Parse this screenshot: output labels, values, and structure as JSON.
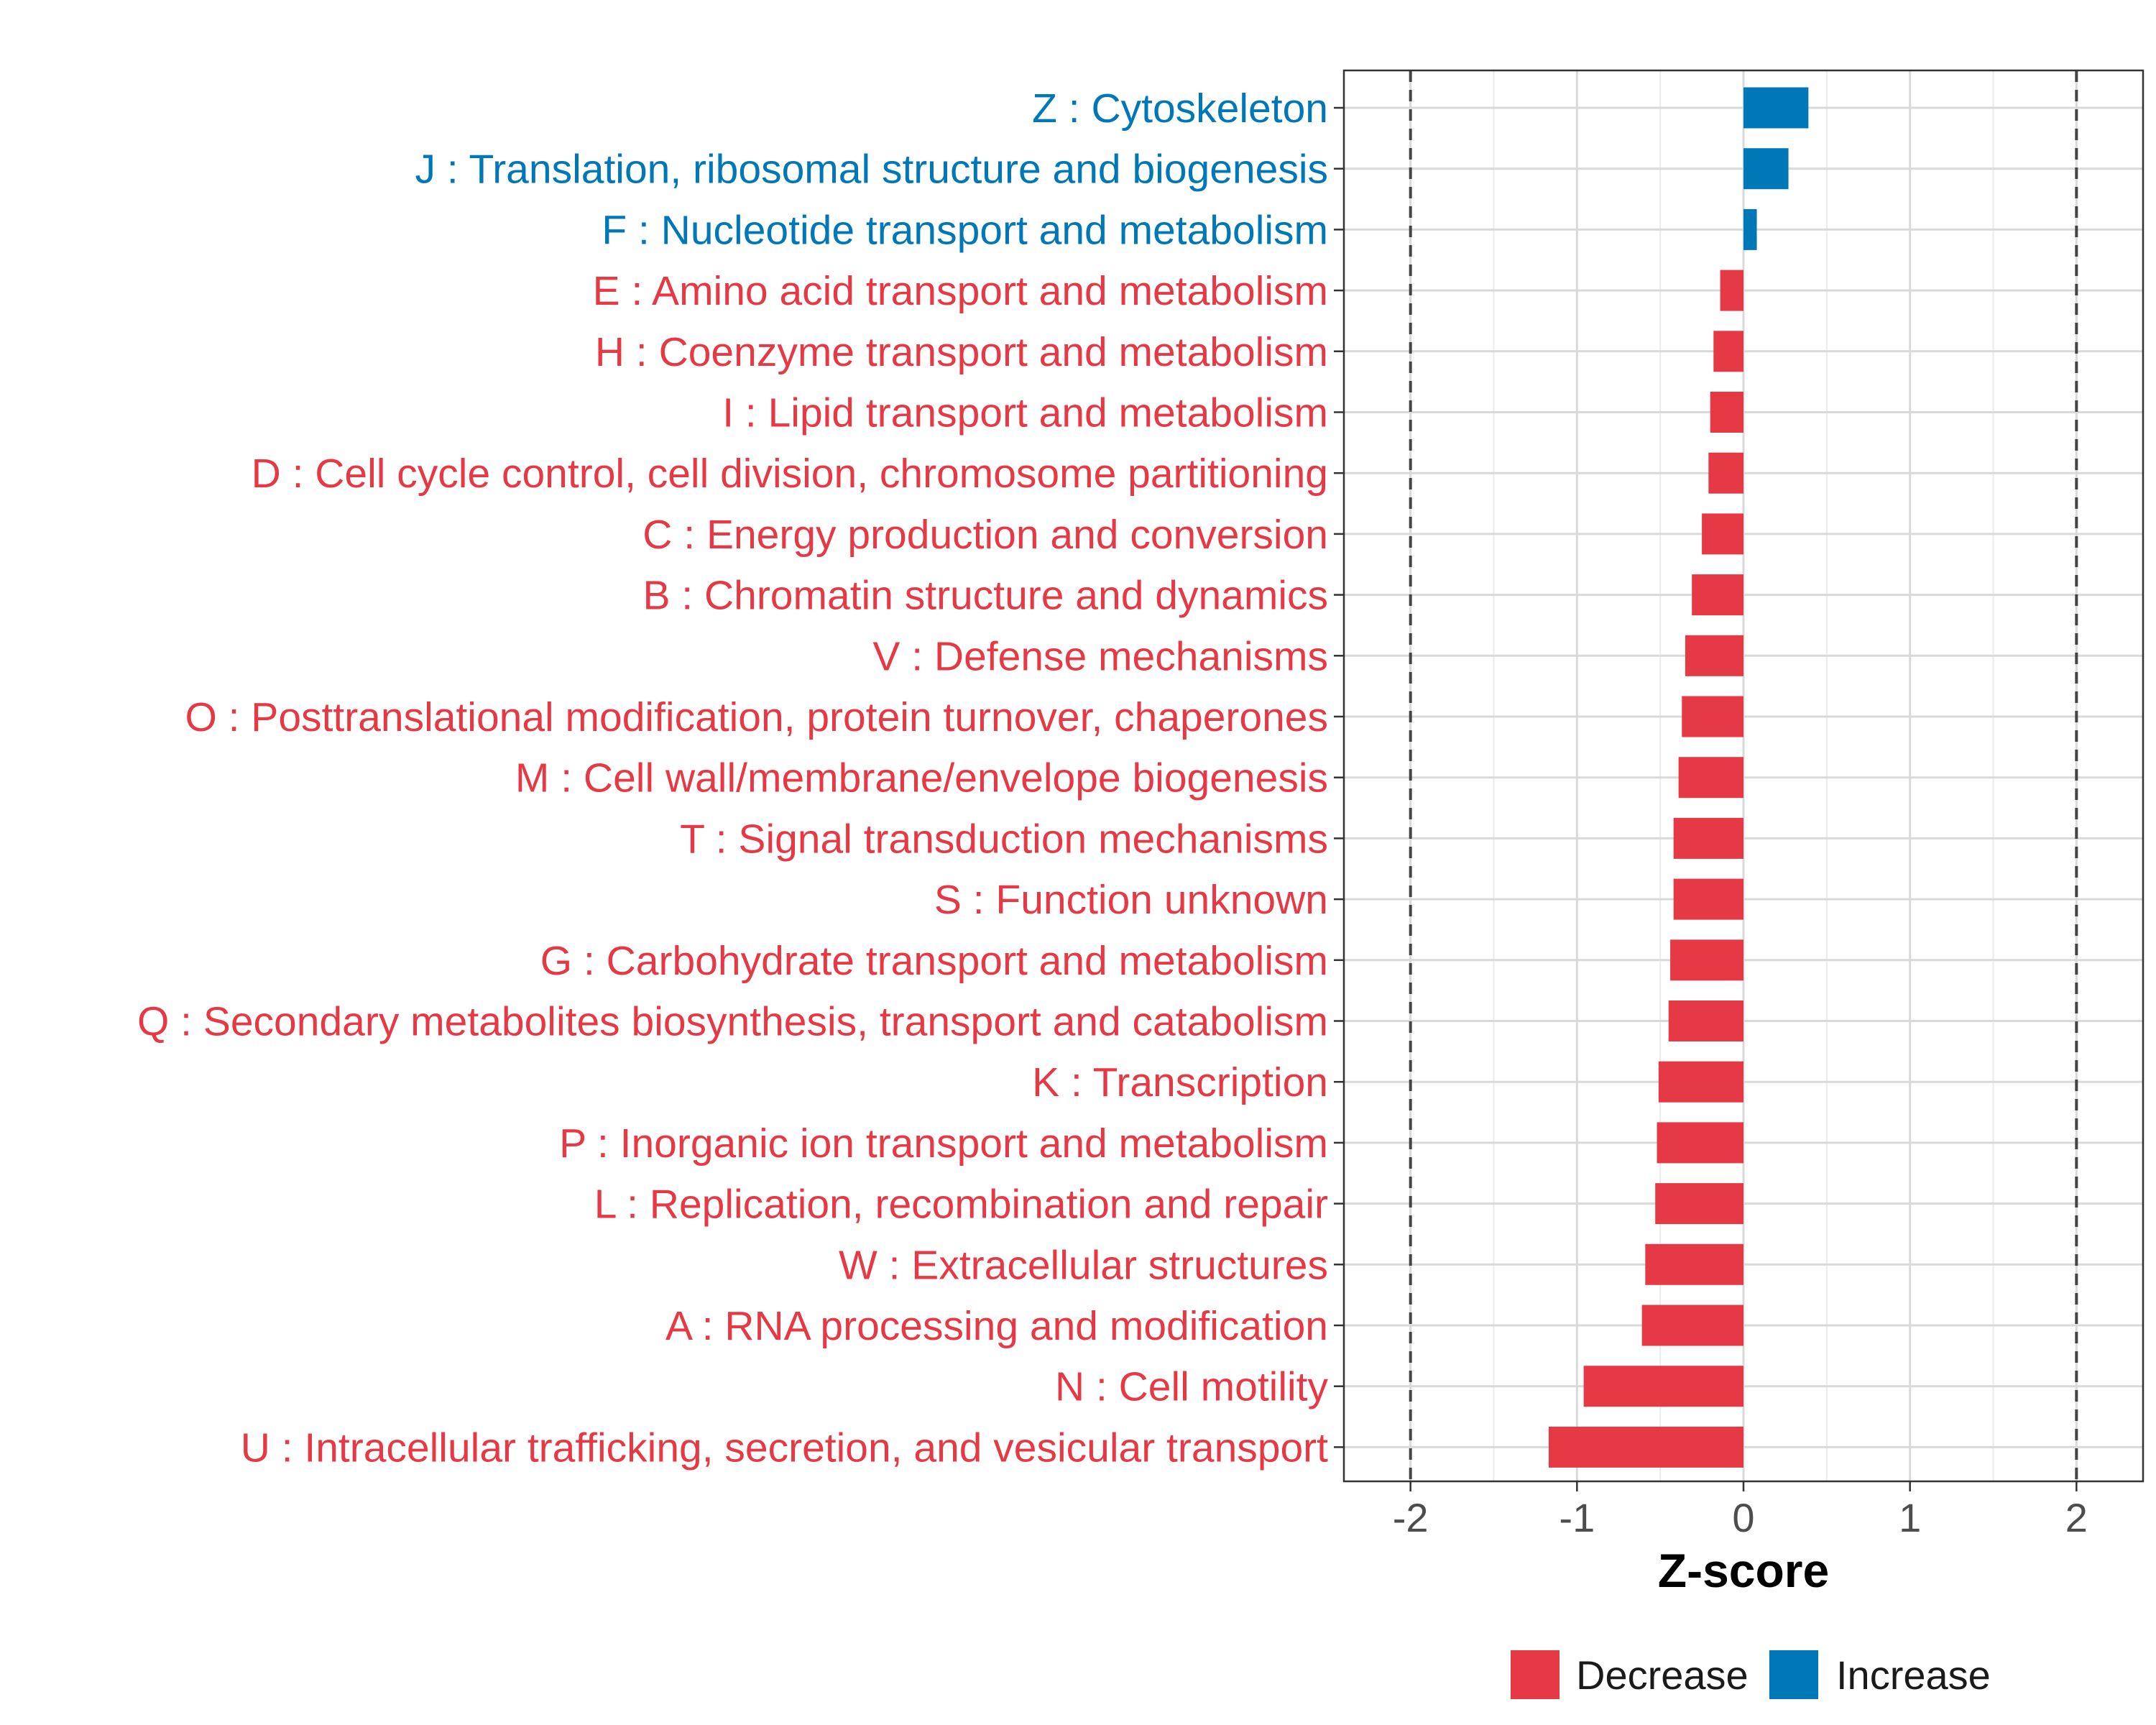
{
  "chart_data": {
    "type": "bar",
    "orientation": "horizontal",
    "title": "",
    "xlabel": "Z-score",
    "ylabel": "",
    "xlim": [
      -2.4,
      2.4
    ],
    "xticks": [
      -2,
      -1,
      0,
      1,
      2
    ],
    "xtick_labels": [
      "-2",
      "-1",
      "0",
      "1",
      "2"
    ],
    "reference_lines": [
      -2,
      2
    ],
    "grid": true,
    "categories": [
      "Z : Cytoskeleton",
      "J : Translation, ribosomal structure and biogenesis",
      "F : Nucleotide transport and metabolism",
      "E : Amino acid transport and metabolism",
      "H : Coenzyme transport and metabolism",
      "I : Lipid transport and metabolism",
      "D : Cell cycle control, cell division, chromosome partitioning",
      "C : Energy production and conversion",
      "B : Chromatin structure and dynamics",
      "V : Defense mechanisms",
      "O : Posttranslational modification, protein turnover, chaperones",
      "M : Cell wall/membrane/envelope biogenesis",
      "T : Signal transduction mechanisms",
      "S : Function unknown",
      "G : Carbohydrate transport and metabolism",
      "Q : Secondary metabolites biosynthesis, transport and catabolism",
      "K : Transcription",
      "P : Inorganic ion transport and metabolism",
      "L : Replication, recombination and repair",
      "W : Extracellular structures",
      "A : RNA processing and modification",
      "N : Cell motility",
      "U : Intracellular trafficking, secretion, and vesicular transport"
    ],
    "values": [
      0.39,
      0.27,
      0.08,
      -0.14,
      -0.18,
      -0.2,
      -0.21,
      -0.25,
      -0.31,
      -0.35,
      -0.37,
      -0.39,
      -0.42,
      -0.42,
      -0.44,
      -0.45,
      -0.51,
      -0.52,
      -0.53,
      -0.59,
      -0.61,
      -0.96,
      -1.17
    ],
    "groups": [
      "Increase",
      "Increase",
      "Increase",
      "Decrease",
      "Decrease",
      "Decrease",
      "Decrease",
      "Decrease",
      "Decrease",
      "Decrease",
      "Decrease",
      "Decrease",
      "Decrease",
      "Decrease",
      "Decrease",
      "Decrease",
      "Decrease",
      "Decrease",
      "Decrease",
      "Decrease",
      "Decrease",
      "Decrease",
      "Decrease"
    ],
    "legend": {
      "position": "bottom",
      "entries": [
        {
          "label": "Decrease",
          "color": "#E63946"
        },
        {
          "label": "Increase",
          "color": "#0077B6"
        }
      ]
    }
  }
}
